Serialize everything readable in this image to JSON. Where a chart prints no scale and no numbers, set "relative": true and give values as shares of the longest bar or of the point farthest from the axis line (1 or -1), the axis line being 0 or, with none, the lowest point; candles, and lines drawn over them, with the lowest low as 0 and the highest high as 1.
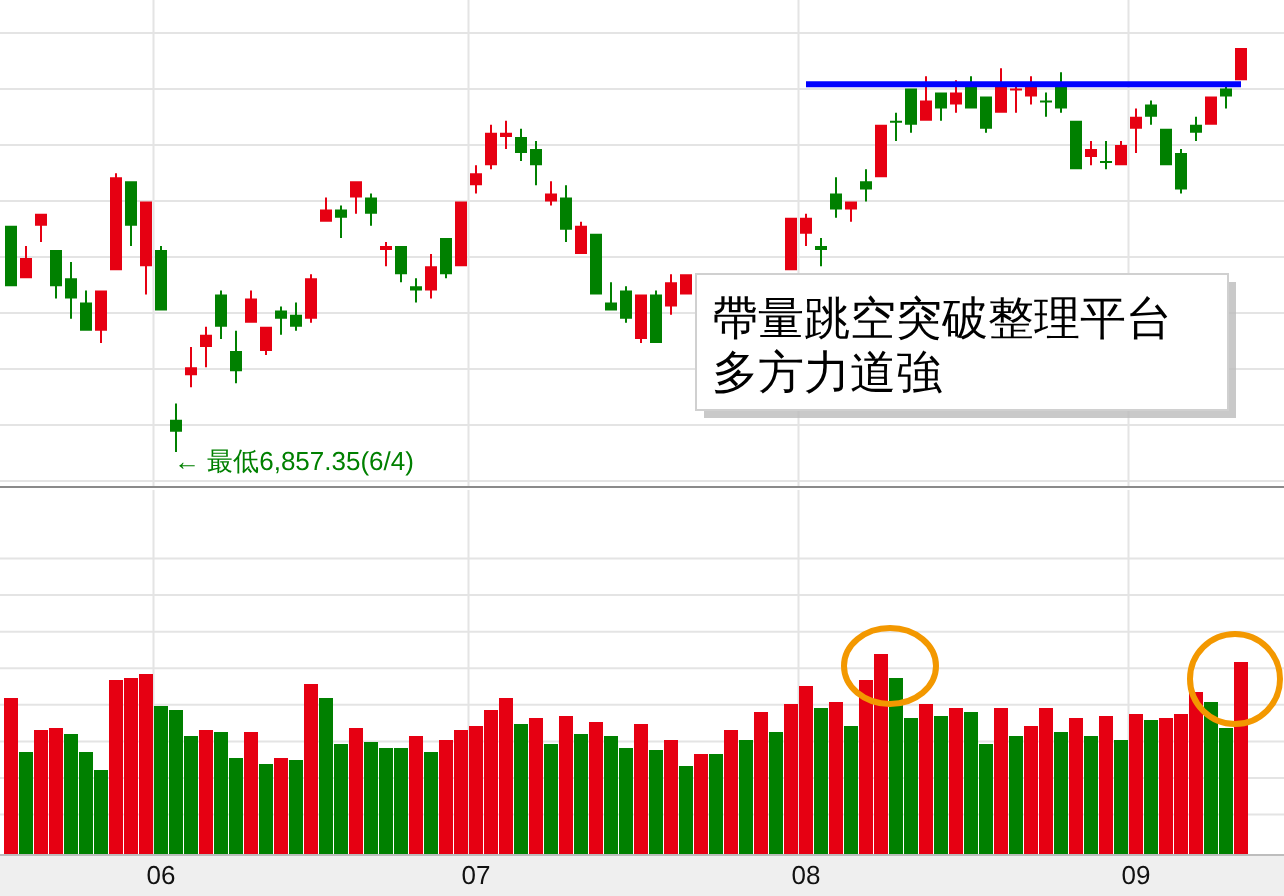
{
  "chart_data": [
    {
      "type": "candlestick",
      "relative": true,
      "categories": [
        null,
        null,
        null,
        null,
        null,
        null,
        null,
        null,
        null,
        null,
        "06",
        null,
        null,
        null,
        null,
        null,
        null,
        null,
        null,
        null,
        null,
        null,
        null,
        null,
        null,
        null,
        null,
        null,
        null,
        null,
        null,
        "07",
        null,
        null,
        null,
        null,
        null,
        null,
        null,
        null,
        null,
        null,
        null,
        null,
        null,
        null,
        null,
        null,
        null,
        null,
        null,
        null,
        null,
        "08",
        null,
        null,
        null,
        null,
        null,
        null,
        null,
        null,
        null,
        null,
        null,
        null,
        null,
        null,
        null,
        null,
        null,
        null,
        null,
        null,
        null,
        "09",
        null,
        null,
        null,
        null,
        null,
        null,
        null
      ],
      "ohlc": [
        [
          0.56,
          0.56,
          0.41,
          0.41
        ],
        [
          0.43,
          0.51,
          0.43,
          0.48
        ],
        [
          0.56,
          0.59,
          0.52,
          0.59
        ],
        [
          0.5,
          0.5,
          0.38,
          0.41
        ],
        [
          0.43,
          0.47,
          0.33,
          0.38
        ],
        [
          0.37,
          0.4,
          0.3,
          0.3
        ],
        [
          0.3,
          0.4,
          0.27,
          0.4
        ],
        [
          0.45,
          0.69,
          0.45,
          0.68
        ],
        [
          0.67,
          0.67,
          0.51,
          0.56
        ],
        [
          0.46,
          0.62,
          0.39,
          0.62
        ],
        [
          0.5,
          0.51,
          0.35,
          0.35
        ],
        [
          0.08,
          0.12,
          0,
          0.05
        ],
        [
          0.19,
          0.26,
          0.16,
          0.21
        ],
        [
          0.26,
          0.31,
          0.21,
          0.29
        ],
        [
          0.39,
          0.4,
          0.28,
          0.31
        ],
        [
          0.25,
          0.3,
          0.17,
          0.2
        ],
        [
          0.32,
          0.4,
          0.32,
          0.38
        ],
        [
          0.25,
          0.31,
          0.24,
          0.31
        ],
        [
          0.35,
          0.36,
          0.29,
          0.33
        ],
        [
          0.34,
          0.37,
          0.3,
          0.31
        ],
        [
          0.33,
          0.44,
          0.32,
          0.43
        ],
        [
          0.57,
          0.63,
          0.57,
          0.6
        ],
        [
          0.6,
          0.61,
          0.53,
          0.58
        ],
        [
          0.63,
          0.67,
          0.59,
          0.67
        ],
        [
          0.63,
          0.64,
          0.56,
          0.59
        ],
        [
          0.5,
          0.52,
          0.46,
          0.51
        ],
        [
          0.51,
          0.51,
          0.42,
          0.44
        ],
        [
          0.41,
          0.43,
          0.37,
          0.4
        ],
        [
          0.4,
          0.49,
          0.38,
          0.46
        ],
        [
          0.53,
          0.53,
          0.43,
          0.44
        ],
        [
          0.46,
          0.62,
          0.46,
          0.62
        ],
        [
          0.66,
          0.71,
          0.64,
          0.69
        ],
        [
          0.71,
          0.81,
          0.7,
          0.79
        ],
        [
          0.78,
          0.82,
          0.75,
          0.79
        ],
        [
          0.78,
          0.8,
          0.72,
          0.74
        ],
        [
          0.75,
          0.77,
          0.66,
          0.71
        ],
        [
          0.62,
          0.67,
          0.61,
          0.64
        ],
        [
          0.63,
          0.66,
          0.52,
          0.55
        ],
        [
          0.49,
          0.57,
          0.49,
          0.56
        ],
        [
          0.54,
          0.54,
          0.39,
          0.39
        ],
        [
          0.37,
          0.42,
          0.35,
          0.35
        ],
        [
          0.4,
          0.41,
          0.32,
          0.33
        ],
        [
          0.28,
          0.39,
          0.27,
          0.39
        ],
        [
          0.39,
          0.4,
          0.27,
          0.27
        ],
        [
          0.36,
          0.44,
          0.34,
          0.42
        ],
        [
          0.39,
          0.44,
          0.39,
          0.44
        ],
        null,
        null,
        null,
        null,
        null,
        null,
        [
          0.45,
          0.58,
          0.45,
          0.58
        ],
        [
          0.54,
          0.59,
          0.51,
          0.58
        ],
        [
          0.51,
          0.53,
          0.46,
          0.5
        ],
        [
          0.64,
          0.68,
          0.58,
          0.6
        ],
        [
          0.6,
          0.62,
          0.57,
          0.62
        ],
        [
          0.67,
          0.7,
          0.62,
          0.65
        ],
        [
          0.68,
          0.81,
          0.68,
          0.81
        ],
        [
          0.82,
          0.84,
          0.77,
          0.82
        ],
        [
          0.9,
          0.9,
          0.79,
          0.81
        ],
        [
          0.82,
          0.93,
          0.82,
          0.87
        ],
        [
          0.89,
          0.89,
          0.82,
          0.85
        ],
        [
          0.86,
          0.92,
          0.84,
          0.89
        ],
        [
          0.91,
          0.93,
          0.85,
          0.85
        ],
        [
          0.88,
          0.88,
          0.79,
          0.8
        ],
        [
          0.84,
          0.95,
          0.84,
          0.91
        ],
        [
          0.9,
          0.91,
          0.84,
          0.9
        ],
        [
          0.88,
          0.93,
          0.86,
          0.91
        ],
        [
          0.87,
          0.89,
          0.83,
          0.87
        ],
        [
          0.91,
          0.94,
          0.84,
          0.85
        ],
        [
          0.82,
          0.82,
          0.7,
          0.7
        ],
        [
          0.73,
          0.77,
          0.71,
          0.75
        ],
        [
          0.72,
          0.77,
          0.7,
          0.72
        ],
        [
          0.71,
          0.77,
          0.71,
          0.76
        ],
        [
          0.8,
          0.85,
          0.74,
          0.83
        ],
        [
          0.86,
          0.87,
          0.81,
          0.83
        ],
        [
          0.8,
          0.8,
          0.71,
          0.71
        ],
        [
          0.74,
          0.75,
          0.64,
          0.65
        ],
        [
          0.81,
          0.83,
          0.77,
          0.79
        ],
        [
          0.81,
          0.88,
          0.81,
          0.88
        ],
        [
          0.9,
          0.91,
          0.85,
          0.88
        ],
        [
          0.92,
          1,
          0.92,
          1
        ]
      ],
      "colors": [
        "#008000",
        "#e60012",
        "#e60012",
        "#008000",
        "#008000",
        "#008000",
        "#e60012",
        "#e60012",
        "#008000",
        "#e60012",
        "#008000",
        "#008000",
        "#e60012",
        "#e60012",
        "#008000",
        "#008000",
        "#e60012",
        "#e60012",
        "#008000",
        "#008000",
        "#e60012",
        "#e60012",
        "#008000",
        "#e60012",
        "#008000",
        "#e60012",
        "#008000",
        "#008000",
        "#e60012",
        "#008000",
        "#e60012",
        "#e60012",
        "#e60012",
        "#e60012",
        "#008000",
        "#008000",
        "#e60012",
        "#008000",
        "#e60012",
        "#008000",
        "#008000",
        "#008000",
        "#e60012",
        "#008000",
        "#e60012",
        "#e60012",
        null,
        null,
        null,
        null,
        null,
        null,
        "#e60012",
        "#e60012",
        "#008000",
        "#008000",
        "#e60012",
        "#008000",
        "#e60012",
        "#008000",
        "#008000",
        "#e60012",
        "#008000",
        "#e60012",
        "#008000",
        "#008000",
        "#e60012",
        "#e60012",
        "#e60012",
        "#008000",
        "#008000",
        "#008000",
        "#e60012",
        "#008000",
        "#e60012",
        "#e60012",
        "#008000",
        "#008000",
        "#008000",
        "#008000",
        "#e60012",
        "#008000",
        "#e60012"
      ],
      "series": [
        {
          "type": "line",
          "color": "#0000ff",
          "values": [
            null,
            null,
            null,
            null,
            null,
            null,
            null,
            null,
            null,
            null,
            null,
            null,
            null,
            null,
            null,
            null,
            null,
            null,
            null,
            null,
            null,
            null,
            null,
            null,
            null,
            null,
            null,
            null,
            null,
            null,
            null,
            null,
            null,
            null,
            null,
            null,
            null,
            null,
            null,
            null,
            null,
            null,
            null,
            null,
            null,
            null,
            null,
            null,
            null,
            null,
            null,
            null,
            null,
            0.91,
            0.91,
            0.91,
            0.91,
            0.91,
            0.91,
            0.91,
            0.91,
            0.91,
            0.91,
            0.91,
            0.91,
            0.91,
            0.91,
            0.91,
            0.91,
            0.91,
            0.91,
            0.91,
            0.91,
            0.91,
            0.91,
            0.91,
            0.91,
            0.91,
            0.91,
            0.91,
            0.91,
            0.91,
            0.91
          ]
        }
      ],
      "grid": true,
      "tick_labels": false,
      "annotations": [
        "← 最低6,857.35(6/4)",
        "帶量跳空突破整理平台",
        "多方力道強"
      ]
    },
    {
      "type": "bar",
      "relative": true,
      "categories": [
        null,
        null,
        null,
        null,
        null,
        null,
        null,
        null,
        null,
        null,
        "06",
        null,
        null,
        null,
        null,
        null,
        null,
        null,
        null,
        null,
        null,
        null,
        null,
        null,
        null,
        null,
        null,
        null,
        null,
        null,
        null,
        "07",
        null,
        null,
        null,
        null,
        null,
        null,
        null,
        null,
        null,
        null,
        null,
        null,
        null,
        null,
        null,
        null,
        null,
        null,
        null,
        null,
        null,
        "08",
        null,
        null,
        null,
        null,
        null,
        null,
        null,
        null,
        null,
        null,
        null,
        null,
        null,
        null,
        null,
        null,
        null,
        null,
        null,
        null,
        null,
        "09",
        null,
        null,
        null,
        null,
        null,
        null,
        null
      ],
      "values": [
        0.78,
        0.51,
        0.62,
        0.63,
        0.6,
        0.51,
        0.42,
        0.87,
        0.88,
        0.9,
        0.74,
        0.72,
        0.59,
        0.62,
        0.61,
        0.48,
        0.61,
        0.45,
        0.48,
        0.47,
        0.85,
        0.78,
        0.55,
        0.63,
        0.56,
        0.53,
        0.53,
        0.59,
        0.51,
        0.57,
        0.62,
        0.64,
        0.72,
        0.78,
        0.65,
        0.68,
        0.55,
        0.69,
        0.6,
        0.66,
        0.59,
        0.53,
        0.65,
        0.52,
        0.57,
        0.44,
        0.5,
        0.5,
        0.62,
        0.57,
        0.71,
        0.61,
        0.75,
        0.84,
        0.73,
        0.76,
        0.64,
        0.87,
        1,
        0.88,
        0.68,
        0.75,
        0.69,
        0.73,
        0.71,
        0.55,
        0.73,
        0.59,
        0.64,
        0.73,
        0.61,
        0.68,
        0.59,
        0.69,
        0.57,
        0.7,
        0.67,
        0.68,
        0.7,
        0.81,
        0.76,
        0.63,
        0.96
      ],
      "colors": [
        "#e60012",
        "#008000",
        "#e60012",
        "#e60012",
        "#008000",
        "#008000",
        "#008000",
        "#e60012",
        "#e60012",
        "#e60012",
        "#008000",
        "#008000",
        "#008000",
        "#e60012",
        "#008000",
        "#008000",
        "#e60012",
        "#008000",
        "#e60012",
        "#008000",
        "#e60012",
        "#008000",
        "#008000",
        "#e60012",
        "#008000",
        "#008000",
        "#008000",
        "#e60012",
        "#008000",
        "#e60012",
        "#e60012",
        "#e60012",
        "#e60012",
        "#e60012",
        "#008000",
        "#e60012",
        "#008000",
        "#e60012",
        "#008000",
        "#e60012",
        "#008000",
        "#008000",
        "#e60012",
        "#008000",
        "#e60012",
        "#008000",
        "#e60012",
        "#008000",
        "#e60012",
        "#008000",
        "#e60012",
        "#008000",
        "#e60012",
        "#e60012",
        "#008000",
        "#e60012",
        "#008000",
        "#e60012",
        "#e60012",
        "#008000",
        "#008000",
        "#e60012",
        "#008000",
        "#e60012",
        "#008000",
        "#008000",
        "#e60012",
        "#008000",
        "#e60012",
        "#e60012",
        "#008000",
        "#e60012",
        "#008000",
        "#e60012",
        "#008000",
        "#e60012",
        "#008000",
        "#e60012",
        "#e60012",
        "#e60012",
        "#008000",
        "#008000",
        "#e60012"
      ],
      "grid": true,
      "tick_labels": "x"
    }
  ]
}
